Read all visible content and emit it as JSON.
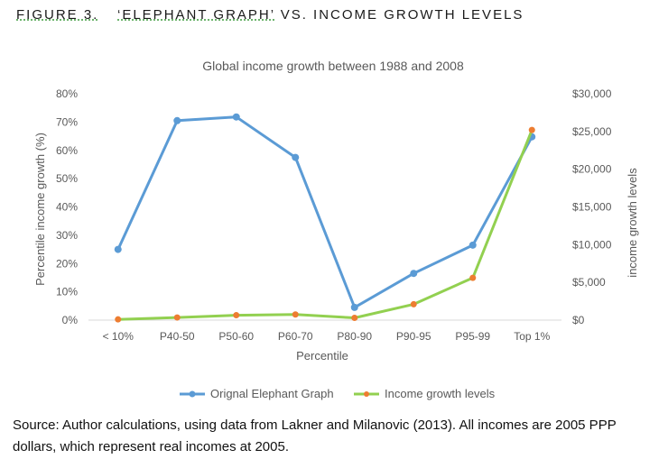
{
  "figure": {
    "number": "FIGURE 3.",
    "title_quoted": "‘ELEPHANT GRAPH’",
    "title_rest": " VS. INCOME GROWTH LEVELS"
  },
  "chart_data": {
    "type": "line",
    "title": "Global income growth between 1988 and 2008",
    "xlabel": "Percentile",
    "ylabel_left": "Percentile income growth (%)",
    "ylabel_right": "income growth levels",
    "categories": [
      "< 10%",
      "P40-50",
      "P50-60",
      "P60-70",
      "P80-90",
      "P90-95",
      "P95-99",
      "Top 1%"
    ],
    "y_left": {
      "min": 0,
      "max": 0.8,
      "ticks": [
        "0%",
        "10%",
        "20%",
        "30%",
        "40%",
        "50%",
        "60%",
        "70%",
        "80%"
      ]
    },
    "y_right": {
      "min": 0,
      "max": 30000,
      "ticks": [
        "$0",
        "$5,000",
        "$10,000",
        "$15,000",
        "$20,000",
        "$25,000",
        "$30,000"
      ]
    },
    "grid": false,
    "legend_position": "bottom",
    "series": [
      {
        "name": "Orignal Elephant Graph",
        "axis": "left",
        "color": "#5b9bd5",
        "marker_color": "#5b9bd5",
        "values": [
          0.25,
          0.705,
          0.718,
          0.575,
          0.045,
          0.165,
          0.265,
          0.648
        ]
      },
      {
        "name": "Income growth levels",
        "axis": "right",
        "color": "#92d050",
        "marker_color": "#ed7d31",
        "values": [
          100,
          350,
          650,
          750,
          300,
          2100,
          5600,
          25200
        ]
      }
    ]
  },
  "source": "Source: Author calculations, using data from Lakner and Milanovic (2013). All incomes are 2005 PPP dollars, which represent real incomes at 2005."
}
